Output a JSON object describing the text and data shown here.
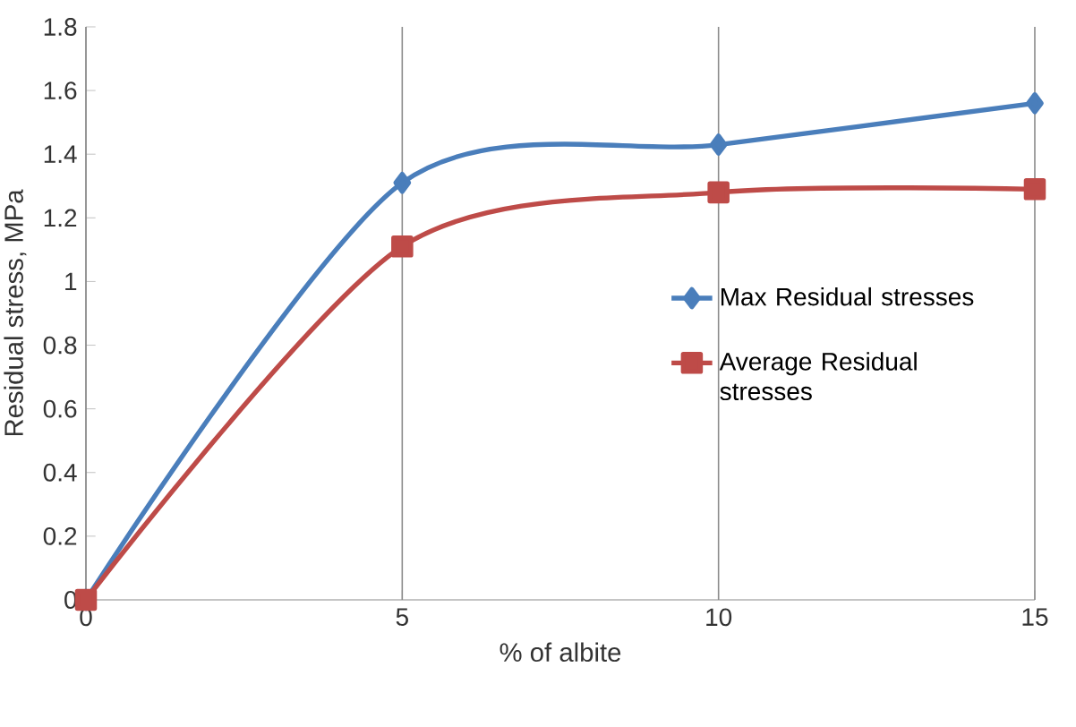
{
  "chart_data": {
    "type": "line",
    "xlabel": "% of albite",
    "ylabel": "Residual stress, MPa",
    "x": [
      0,
      5,
      10,
      15
    ],
    "series": [
      {
        "name": "Max Residual stresses",
        "color": "#4a7ebb",
        "marker": "diamond",
        "values": [
          0,
          1.31,
          1.43,
          1.56
        ]
      },
      {
        "name": "Average Residual stresses",
        "color": "#be4b48",
        "marker": "square",
        "values": [
          0,
          1.11,
          1.28,
          1.29
        ]
      }
    ],
    "xlim": [
      0,
      15
    ],
    "xticks": [
      0,
      5,
      10,
      15
    ],
    "ylim": [
      0,
      1.8
    ],
    "yticks": [
      0,
      0.2,
      0.4,
      0.6,
      0.8,
      1,
      1.2,
      1.4,
      1.6,
      1.8
    ],
    "grid": "x",
    "legend": "right"
  }
}
